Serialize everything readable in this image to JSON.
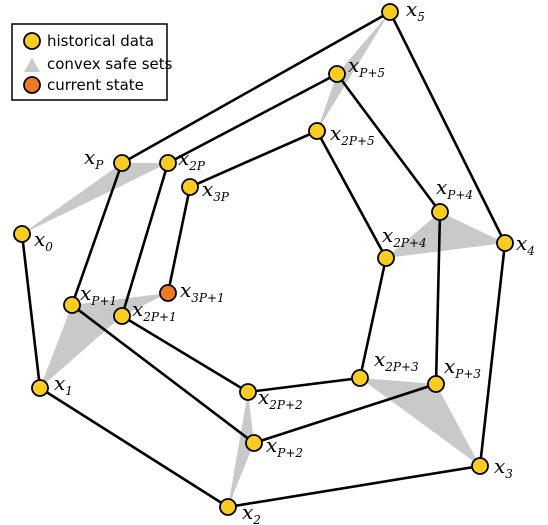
{
  "legend": {
    "historical": "historical data",
    "safe_sets": "convex safe sets",
    "current": "current state"
  },
  "colors": {
    "node_fill": "#F9CC22",
    "current_fill": "#EE7B23",
    "safe_set_fill": "#C9C9C9",
    "edge": "#000000"
  },
  "labels": {
    "x0": {
      "base": "x",
      "sub": "0"
    },
    "x1": {
      "base": "x",
      "sub": "1"
    },
    "x2": {
      "base": "x",
      "sub": "2"
    },
    "x3": {
      "base": "x",
      "sub": "3"
    },
    "x4": {
      "base": "x",
      "sub": "4"
    },
    "x5": {
      "base": "x",
      "sub": "5"
    },
    "xP": {
      "base": "x",
      "sub": "P"
    },
    "xP1": {
      "base": "x",
      "sub": "P+1"
    },
    "xP2": {
      "base": "x",
      "sub": "P+2"
    },
    "xP3": {
      "base": "x",
      "sub": "P+3"
    },
    "xP4": {
      "base": "x",
      "sub": "P+4"
    },
    "xP5": {
      "base": "x",
      "sub": "P+5"
    },
    "x2P": {
      "base": "x",
      "sub": "2P"
    },
    "x2P1": {
      "base": "x",
      "sub": "2P+1"
    },
    "x2P2": {
      "base": "x",
      "sub": "2P+2"
    },
    "x2P3": {
      "base": "x",
      "sub": "2P+3"
    },
    "x2P4": {
      "base": "x",
      "sub": "2P+4"
    },
    "x2P5": {
      "base": "x",
      "sub": "2P+5"
    },
    "x3P": {
      "base": "x",
      "sub": "3P"
    },
    "x3P1": {
      "base": "x",
      "sub": "3P+1"
    }
  }
}
